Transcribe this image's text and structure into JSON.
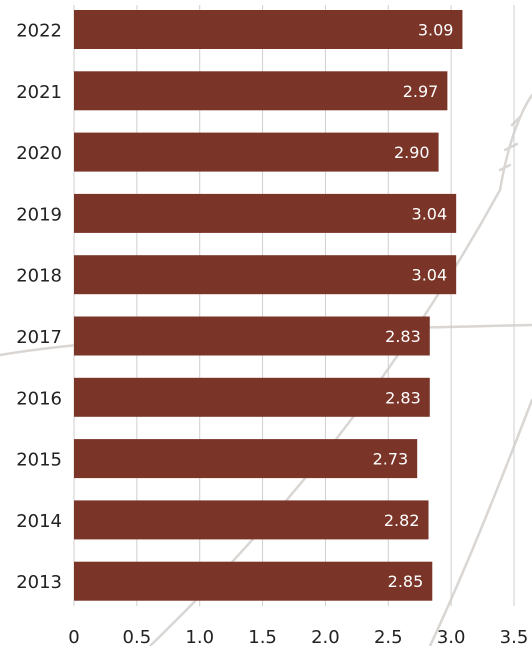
{
  "chart_data": {
    "type": "bar",
    "orientation": "horizontal",
    "categories": [
      "2022",
      "2021",
      "2020",
      "2019",
      "2018",
      "2017",
      "2016",
      "2015",
      "2014",
      "2013"
    ],
    "values": [
      3.09,
      2.97,
      2.9,
      3.04,
      3.04,
      2.83,
      2.83,
      2.73,
      2.82,
      2.85
    ],
    "value_labels": [
      "3.09",
      "2.97",
      "2.90",
      "3.04",
      "3.04",
      "2.83",
      "2.83",
      "2.73",
      "2.82",
      "2.85"
    ],
    "x_ticks": [
      "0",
      "0.5",
      "1.0",
      "1.5",
      "2.0",
      "2.5",
      "3.0",
      "3.5"
    ],
    "xlim": [
      0,
      3.5
    ],
    "grid": "vertical",
    "bar_color": "#7a3428",
    "label_color": "#ffffff"
  }
}
